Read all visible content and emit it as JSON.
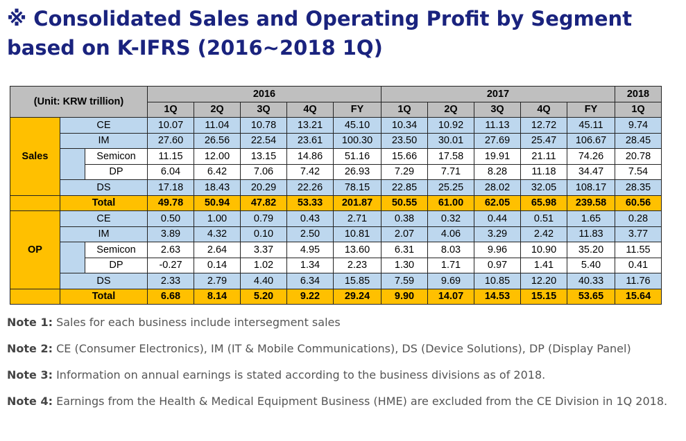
{
  "title": "※ Consolidated Sales and Operating Profit by Segment based on K-IFRS (2016~2018 1Q)",
  "table": {
    "unit_label": "(Unit: KRW trillion)",
    "years": [
      "2016",
      "2017",
      "2018"
    ],
    "periods_2016": [
      "1Q",
      "2Q",
      "3Q",
      "4Q",
      "FY"
    ],
    "periods_2017": [
      "1Q",
      "2Q",
      "3Q",
      "4Q",
      "FY"
    ],
    "periods_2018": [
      "1Q"
    ],
    "groups": [
      {
        "name": "Sales",
        "rows": [
          {
            "label": "CE",
            "values": [
              "10.07",
              "11.04",
              "10.78",
              "13.21",
              "45.10",
              "10.34",
              "10.92",
              "11.13",
              "12.72",
              "45.11",
              "9.74"
            ]
          },
          {
            "label": "IM",
            "values": [
              "27.60",
              "26.56",
              "22.54",
              "23.61",
              "100.30",
              "23.50",
              "30.01",
              "27.69",
              "25.47",
              "106.67",
              "28.45"
            ]
          },
          {
            "label": "Semicon",
            "values": [
              "11.15",
              "12.00",
              "13.15",
              "14.86",
              "51.16",
              "15.66",
              "17.58",
              "19.91",
              "21.11",
              "74.26",
              "20.78"
            ]
          },
          {
            "label": "DP",
            "values": [
              "6.04",
              "6.42",
              "7.06",
              "7.42",
              "26.93",
              "7.29",
              "7.71",
              "8.28",
              "11.18",
              "34.47",
              "7.54"
            ]
          },
          {
            "label": "DS",
            "values": [
              "17.18",
              "18.43",
              "20.29",
              "22.26",
              "78.15",
              "22.85",
              "25.25",
              "28.02",
              "32.05",
              "108.17",
              "28.35"
            ]
          },
          {
            "label": "Total",
            "values": [
              "49.78",
              "50.94",
              "47.82",
              "53.33",
              "201.87",
              "50.55",
              "61.00",
              "62.05",
              "65.98",
              "239.58",
              "60.56"
            ]
          }
        ]
      },
      {
        "name": "OP",
        "rows": [
          {
            "label": "CE",
            "values": [
              "0.50",
              "1.00",
              "0.79",
              "0.43",
              "2.71",
              "0.38",
              "0.32",
              "0.44",
              "0.51",
              "1.65",
              "0.28"
            ]
          },
          {
            "label": "IM",
            "values": [
              "3.89",
              "4.32",
              "0.10",
              "2.50",
              "10.81",
              "2.07",
              "4.06",
              "3.29",
              "2.42",
              "11.83",
              "3.77"
            ]
          },
          {
            "label": "Semicon",
            "values": [
              "2.63",
              "2.64",
              "3.37",
              "4.95",
              "13.60",
              "6.31",
              "8.03",
              "9.96",
              "10.90",
              "35.20",
              "11.55"
            ]
          },
          {
            "label": "DP",
            "values": [
              "-0.27",
              "0.14",
              "1.02",
              "1.34",
              "2.23",
              "1.30",
              "1.71",
              "0.97",
              "1.41",
              "5.40",
              "0.41"
            ]
          },
          {
            "label": "DS",
            "values": [
              "2.33",
              "2.79",
              "4.40",
              "6.34",
              "15.85",
              "7.59",
              "9.69",
              "10.85",
              "12.20",
              "40.33",
              "11.76"
            ]
          },
          {
            "label": "Total",
            "values": [
              "6.68",
              "8.14",
              "5.20",
              "9.22",
              "29.24",
              "9.90",
              "14.07",
              "14.53",
              "15.15",
              "53.65",
              "15.64"
            ]
          }
        ]
      }
    ],
    "colors": {
      "header_gray": "#bfbfbf",
      "light_blue": "#bdd7ee",
      "gold": "#ffc000",
      "title_navy": "#1a237e"
    }
  },
  "notes": [
    {
      "label": "Note 1:",
      "text": "Sales for each business include intersegment sales"
    },
    {
      "label": "Note 2:",
      "text": "CE (Consumer Electronics), IM (IT & Mobile Communications), DS (Device Solutions), DP (Display Panel)"
    },
    {
      "label": "Note 3:",
      "text": "Information on annual earnings is stated according to the business divisions as of 2018."
    },
    {
      "label": "Note 4:",
      "text": "Earnings from the Health & Medical Equipment Business (HME) are excluded from the CE Division in 1Q 2018."
    }
  ]
}
